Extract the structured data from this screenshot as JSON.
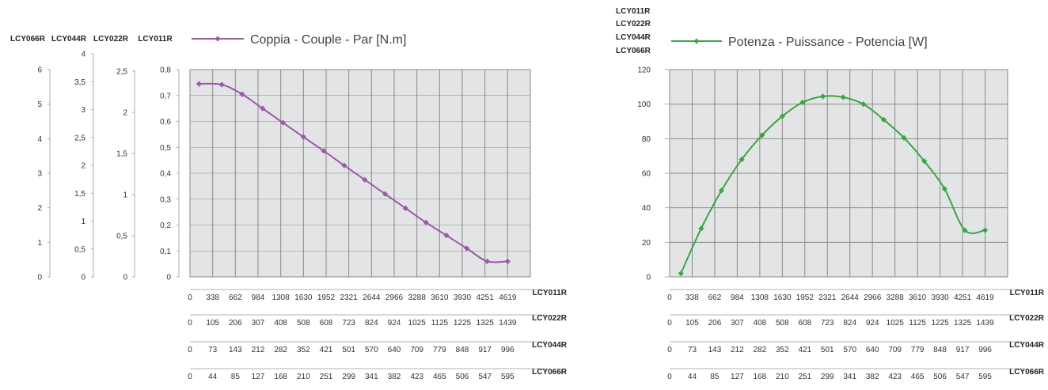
{
  "chart_data": [
    {
      "type": "line",
      "legend": "Coppia - Couple - Par [N.m]",
      "color": "#9b5aa8",
      "xlim": [
        0,
        15
      ],
      "x_axes": [
        {
          "name": "LCY011R",
          "ticks": [
            "0",
            "338",
            "662",
            "984",
            "1308",
            "1630",
            "1952",
            "2321",
            "2644",
            "2966",
            "3288",
            "3610",
            "3930",
            "4251",
            "4619"
          ]
        },
        {
          "name": "LCY022R",
          "ticks": [
            "0",
            "105",
            "206",
            "307",
            "408",
            "508",
            "608",
            "723",
            "824",
            "924",
            "1025",
            "1125",
            "1225",
            "1325",
            "1439"
          ]
        },
        {
          "name": "LCY044R",
          "ticks": [
            "0",
            "73",
            "143",
            "212",
            "282",
            "352",
            "421",
            "501",
            "570",
            "640",
            "709",
            "779",
            "848",
            "917",
            "996"
          ]
        },
        {
          "name": "LCY066R",
          "ticks": [
            "0",
            "44",
            "85",
            "127",
            "168",
            "210",
            "251",
            "299",
            "341",
            "382",
            "423",
            "465",
            "506",
            "547",
            "595"
          ]
        }
      ],
      "y_axes": [
        {
          "name": "LCY011R",
          "max": 0.8,
          "ticks": [
            {
              "v": 0,
              "t": "0"
            },
            {
              "v": 0.1,
              "t": "0,1"
            },
            {
              "v": 0.2,
              "t": "0,2"
            },
            {
              "v": 0.3,
              "t": "0,3"
            },
            {
              "v": 0.4,
              "t": "0,4"
            },
            {
              "v": 0.5,
              "t": "0,5"
            },
            {
              "v": 0.6,
              "t": "0,6"
            },
            {
              "v": 0.7,
              "t": "0,7"
            },
            {
              "v": 0.8,
              "t": "0,8"
            }
          ]
        },
        {
          "name": "LCY022R",
          "max": 2.5,
          "ticks": [
            {
              "v": 0,
              "t": "0"
            },
            {
              "v": 0.5,
              "t": "0,5"
            },
            {
              "v": 1,
              "t": "1"
            },
            {
              "v": 1.5,
              "t": "1,5"
            },
            {
              "v": 2,
              "t": "2"
            },
            {
              "v": 2.5,
              "t": "2,5"
            }
          ]
        },
        {
          "name": "LCY044R",
          "max": 4,
          "ticks": [
            {
              "v": 0,
              "t": "0"
            },
            {
              "v": 0.5,
              "t": "0,5"
            },
            {
              "v": 1,
              "t": "1"
            },
            {
              "v": 1.5,
              "t": "1,5"
            },
            {
              "v": 2,
              "t": "2"
            },
            {
              "v": 2.5,
              "t": "2,5"
            },
            {
              "v": 3,
              "t": "3"
            },
            {
              "v": 3.5,
              "t": "3,5"
            },
            {
              "v": 4,
              "t": "4"
            }
          ]
        },
        {
          "name": "LCY066R",
          "max": 6,
          "ticks": [
            {
              "v": 0,
              "t": "0"
            },
            {
              "v": 1,
              "t": "1"
            },
            {
              "v": 2,
              "t": "2"
            },
            {
              "v": 3,
              "t": "3"
            },
            {
              "v": 4,
              "t": "4"
            },
            {
              "v": 5,
              "t": "5"
            },
            {
              "v": 6,
              "t": "6"
            }
          ]
        }
      ],
      "series": [
        {
          "x": [
            0.4,
            1.4,
            2.3,
            3.2,
            4.1,
            5.0,
            5.9,
            6.8,
            7.7,
            8.6,
            9.5,
            10.4,
            11.3,
            12.2,
            13.1,
            14.0
          ],
          "y": [
            0.745,
            0.742,
            0.705,
            0.65,
            0.595,
            0.54,
            0.486,
            0.43,
            0.375,
            0.32,
            0.265,
            0.21,
            0.16,
            0.11,
            0.06,
            0.06
          ]
        }
      ]
    },
    {
      "type": "line",
      "legend": "Potenza - Puissance - Potencia [W]",
      "color": "#3aa641",
      "xlim": [
        0,
        15
      ],
      "ylim": [
        0,
        120
      ],
      "y_axes_names": [
        "LCY011R",
        "LCY022R",
        "LCY044R",
        "LCY066R"
      ],
      "y_ticks": [
        0,
        20,
        40,
        60,
        80,
        100,
        120
      ],
      "x_axes": [
        {
          "name": "LCY011R",
          "ticks": [
            "0",
            "338",
            "662",
            "984",
            "1308",
            "1630",
            "1952",
            "2321",
            "2644",
            "2966",
            "3288",
            "3610",
            "3930",
            "4251",
            "4619"
          ]
        },
        {
          "name": "LCY022R",
          "ticks": [
            "0",
            "105",
            "206",
            "307",
            "408",
            "508",
            "608",
            "723",
            "824",
            "924",
            "1025",
            "1125",
            "1225",
            "1325",
            "1439"
          ]
        },
        {
          "name": "LCY044R",
          "ticks": [
            "0",
            "73",
            "143",
            "212",
            "282",
            "352",
            "421",
            "501",
            "570",
            "640",
            "709",
            "779",
            "848",
            "917",
            "996"
          ]
        },
        {
          "name": "LCY066R",
          "ticks": [
            "0",
            "44",
            "85",
            "127",
            "168",
            "210",
            "251",
            "299",
            "341",
            "382",
            "423",
            "465",
            "506",
            "547",
            "595"
          ]
        }
      ],
      "series": [
        {
          "x": [
            0.5,
            1.4,
            2.3,
            3.2,
            4.1,
            5.0,
            5.9,
            6.8,
            7.7,
            8.6,
            9.5,
            10.4,
            11.3,
            12.2,
            13.1,
            14.0
          ],
          "y": [
            2,
            28,
            50,
            68,
            82,
            93,
            101,
            104.5,
            104,
            100,
            91,
            80.5,
            67,
            51,
            27,
            27
          ]
        }
      ]
    }
  ]
}
